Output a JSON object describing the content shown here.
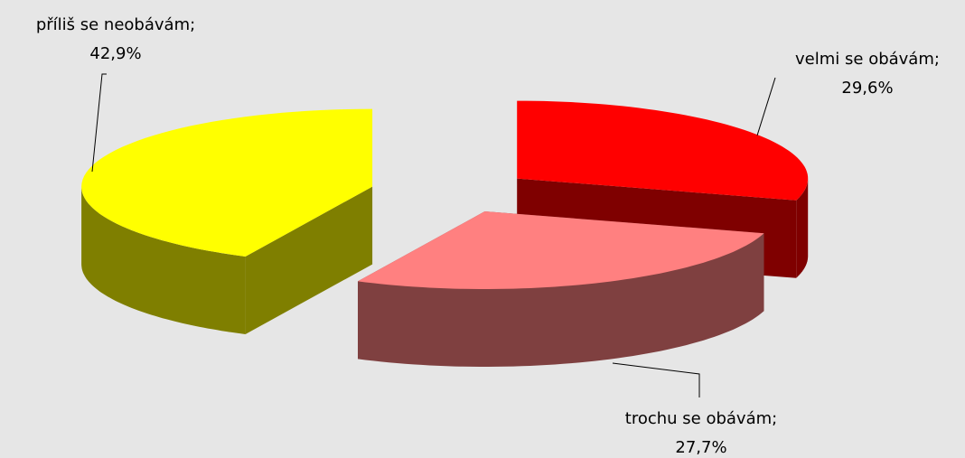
{
  "chart_data": {
    "type": "pie",
    "categories": [
      "velmi se obávám;",
      "trochu se obávám;",
      "příliš se neobávám;"
    ],
    "values": [
      29.6,
      27.7,
      42.9
    ],
    "value_labels": [
      "29,6%",
      "27,7%",
      "42,9%"
    ],
    "colors": [
      "#ff0000",
      "#ff8080",
      "#ffff00"
    ]
  }
}
